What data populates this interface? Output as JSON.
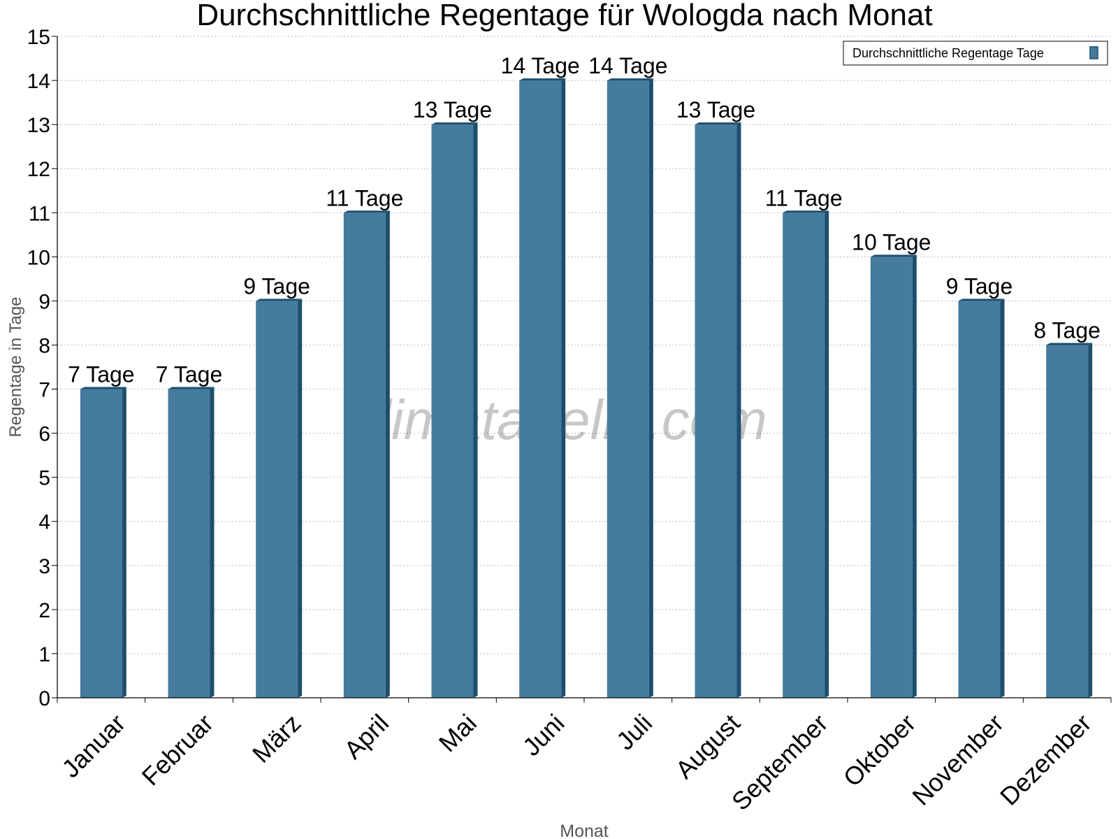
{
  "chart_data": {
    "type": "bar",
    "title": "Durchschnittliche Regentage für Wologda nach Monat",
    "xlabel": "Monat",
    "ylabel": "Regentage in Tage",
    "ylim": [
      0,
      15
    ],
    "yticks": [
      0,
      1,
      2,
      3,
      4,
      5,
      6,
      7,
      8,
      9,
      10,
      11,
      12,
      13,
      14,
      15
    ],
    "grid": true,
    "legend_position": "top-right",
    "categories": [
      "Januar",
      "Februar",
      "März",
      "April",
      "Mai",
      "Juni",
      "Juli",
      "August",
      "September",
      "Oktober",
      "November",
      "Dezember"
    ],
    "series": [
      {
        "name": "Durchschnittliche Regentage Tage",
        "values": [
          7,
          7,
          9,
          11,
          13,
          14,
          14,
          13,
          11,
          10,
          9,
          8
        ],
        "color": "#457b9d",
        "side_color": "#1d4e6e"
      }
    ],
    "value_label_unit": "Tage",
    "watermark": "klimatabelle.com"
  }
}
